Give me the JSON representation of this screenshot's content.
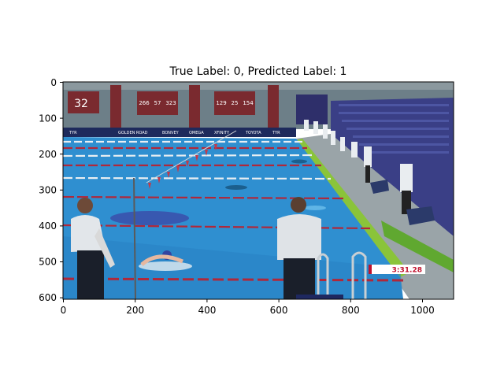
{
  "figure": {
    "title": "True Label: 0, Predicted Label: 1",
    "x_ticks": [
      "0",
      "200",
      "400",
      "600",
      "800",
      "1000"
    ],
    "y_ticks": [
      "0",
      "100",
      "200",
      "300",
      "400",
      "500",
      "600"
    ]
  },
  "image": {
    "description_free": true,
    "scoreboard_left": "32",
    "scoreboard_mid": [
      "266",
      "57",
      "323"
    ],
    "scoreboard_right": [
      "129",
      "25",
      "154"
    ],
    "banner_text": [
      "TYR",
      "GOLDEN ROAD",
      "BONVEY",
      "OMEGA",
      "XFINITY",
      "TOYOTA",
      "TYR"
    ],
    "race_clock": "3:31.28",
    "colors": {
      "pool": "#2f8fd0",
      "deck": "#9aa4a8",
      "wall": "#6b7d86",
      "lane_line_red": "#b0283a",
      "lane_line_white": "#e8eef2",
      "stands": "#3a3f86",
      "green_wall": "#8ac43a",
      "clock_red": "#c0102c"
    }
  }
}
